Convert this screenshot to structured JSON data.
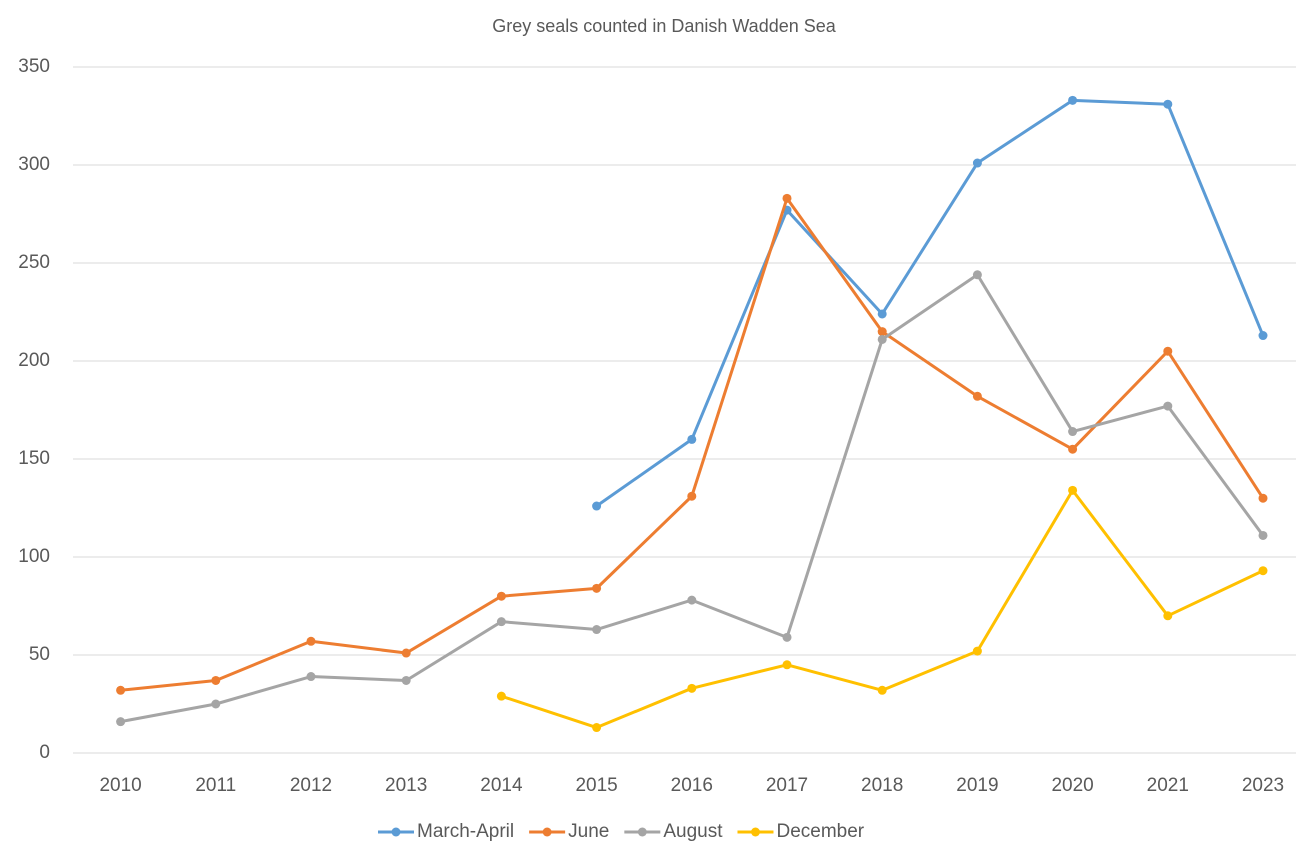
{
  "chart_data": {
    "type": "line",
    "title": "Grey seals counted in Danish Wadden Sea",
    "categories": [
      "2010",
      "2011",
      "2012",
      "2013",
      "2014",
      "2015",
      "2016",
      "2017",
      "2018",
      "2019",
      "2020",
      "2021",
      "2023"
    ],
    "series": [
      {
        "name": "March-April",
        "color": "#5b9bd5",
        "values": [
          null,
          null,
          null,
          null,
          null,
          126,
          160,
          277,
          224,
          301,
          333,
          331,
          213
        ]
      },
      {
        "name": "June",
        "color": "#ed7d31",
        "values": [
          32,
          37,
          57,
          51,
          80,
          84,
          131,
          283,
          215,
          182,
          155,
          205,
          130
        ]
      },
      {
        "name": "August",
        "color": "#a5a5a5",
        "values": [
          16,
          25,
          39,
          37,
          67,
          63,
          78,
          59,
          211,
          244,
          164,
          177,
          111
        ]
      },
      {
        "name": "December",
        "color": "#ffc000",
        "values": [
          null,
          null,
          null,
          null,
          29,
          13,
          33,
          45,
          32,
          52,
          134,
          70,
          93
        ]
      }
    ],
    "ylim": [
      0,
      350
    ],
    "yticks": [
      0,
      50,
      100,
      150,
      200,
      250,
      300,
      350
    ],
    "grid": true,
    "legend": "bottom"
  }
}
